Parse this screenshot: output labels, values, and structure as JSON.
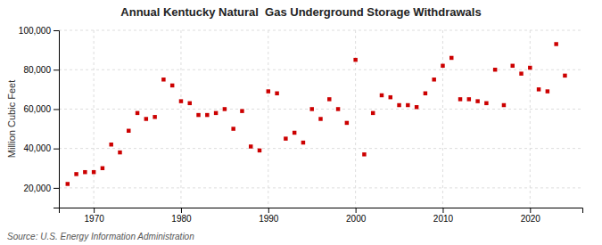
{
  "chart_data": {
    "type": "scatter",
    "title": "Annual Kentucky Natural  Gas Underground Storage Withdrawals",
    "ylabel": "Million Cubic Feet",
    "annotations": [
      "Source: U.S. Energy Information Administration"
    ],
    "color": "#cc0000",
    "marker": "square",
    "grid": true,
    "xlim": [
      1966,
      2026
    ],
    "ylim": [
      10000,
      100000
    ],
    "xticks": [
      1970,
      1980,
      1990,
      2000,
      2010,
      2020
    ],
    "yticks": [
      {
        "value": 20000,
        "label": "20,000"
      },
      {
        "value": 40000,
        "label": "40,000"
      },
      {
        "value": 60000,
        "label": "60,000"
      },
      {
        "value": 80000,
        "label": "80,000"
      },
      {
        "value": 100000,
        "label": "100,000"
      }
    ],
    "x": [
      1967,
      1968,
      1969,
      1970,
      1971,
      1972,
      1973,
      1974,
      1975,
      1976,
      1977,
      1978,
      1979,
      1980,
      1981,
      1982,
      1983,
      1984,
      1985,
      1986,
      1987,
      1988,
      1989,
      1990,
      1991,
      1992,
      1993,
      1994,
      1995,
      1996,
      1997,
      1998,
      1999,
      2000,
      2001,
      2002,
      2003,
      2004,
      2005,
      2006,
      2007,
      2008,
      2009,
      2010,
      2011,
      2012,
      2013,
      2014,
      2015,
      2016,
      2017,
      2018,
      2019,
      2020,
      2021,
      2022,
      2023,
      2024
    ],
    "values": [
      22000,
      27000,
      28000,
      28000,
      30000,
      42000,
      38000,
      49000,
      58000,
      55000,
      56000,
      75000,
      72000,
      64000,
      63000,
      57000,
      57000,
      58000,
      60000,
      50000,
      59000,
      41000,
      39000,
      69000,
      68000,
      45000,
      48000,
      43000,
      60000,
      55000,
      65000,
      60000,
      53000,
      85000,
      37000,
      58000,
      67000,
      66000,
      62000,
      62000,
      61000,
      68000,
      75000,
      82000,
      86000,
      65000,
      65000,
      64000,
      63000,
      80000,
      62000,
      82000,
      78000,
      81000,
      70000,
      69000,
      93000,
      77000
    ]
  }
}
